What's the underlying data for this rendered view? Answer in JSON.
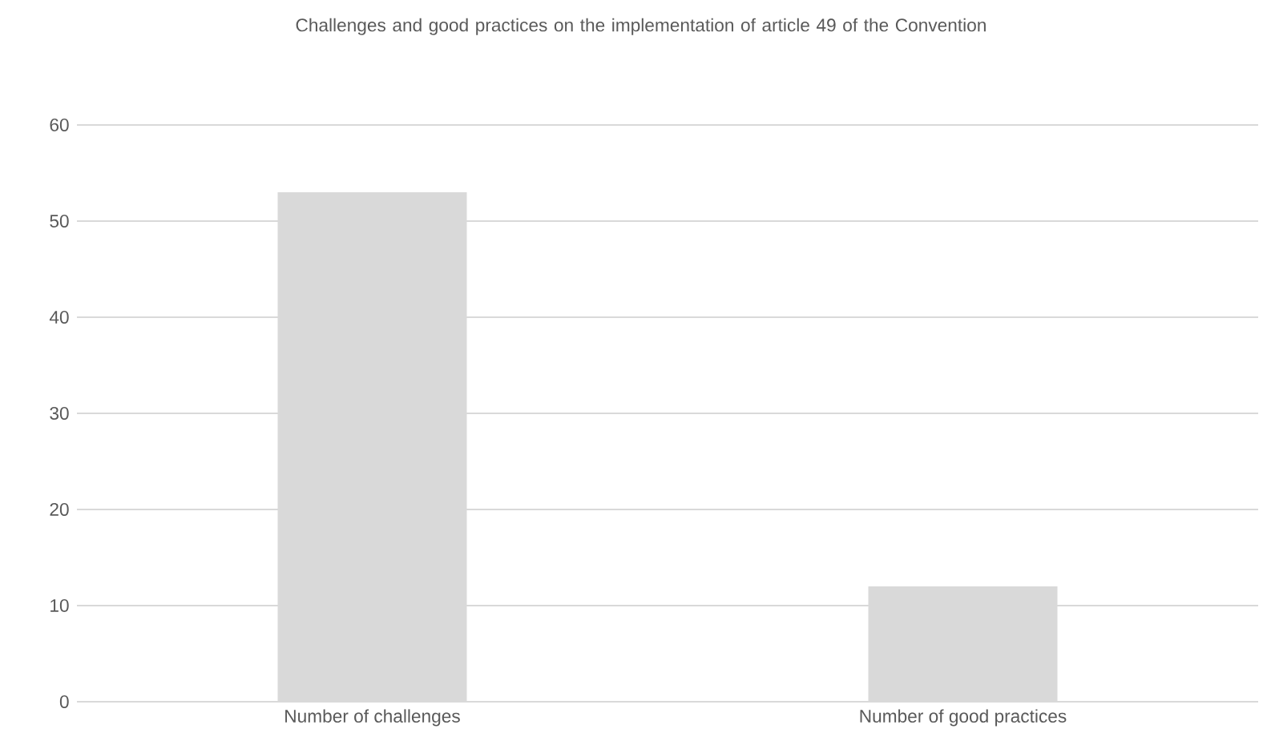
{
  "chart_data": {
    "type": "bar",
    "title": "Challenges and good practices on the implementation of article 49 of the Convention",
    "categories": [
      "Number of challenges",
      "Number of good practices"
    ],
    "values": [
      53,
      12
    ],
    "color": "#d9d9d9",
    "ylim": [
      0,
      60
    ],
    "yticks": [
      0,
      10,
      20,
      30,
      40,
      50,
      60
    ],
    "grid": "y"
  }
}
